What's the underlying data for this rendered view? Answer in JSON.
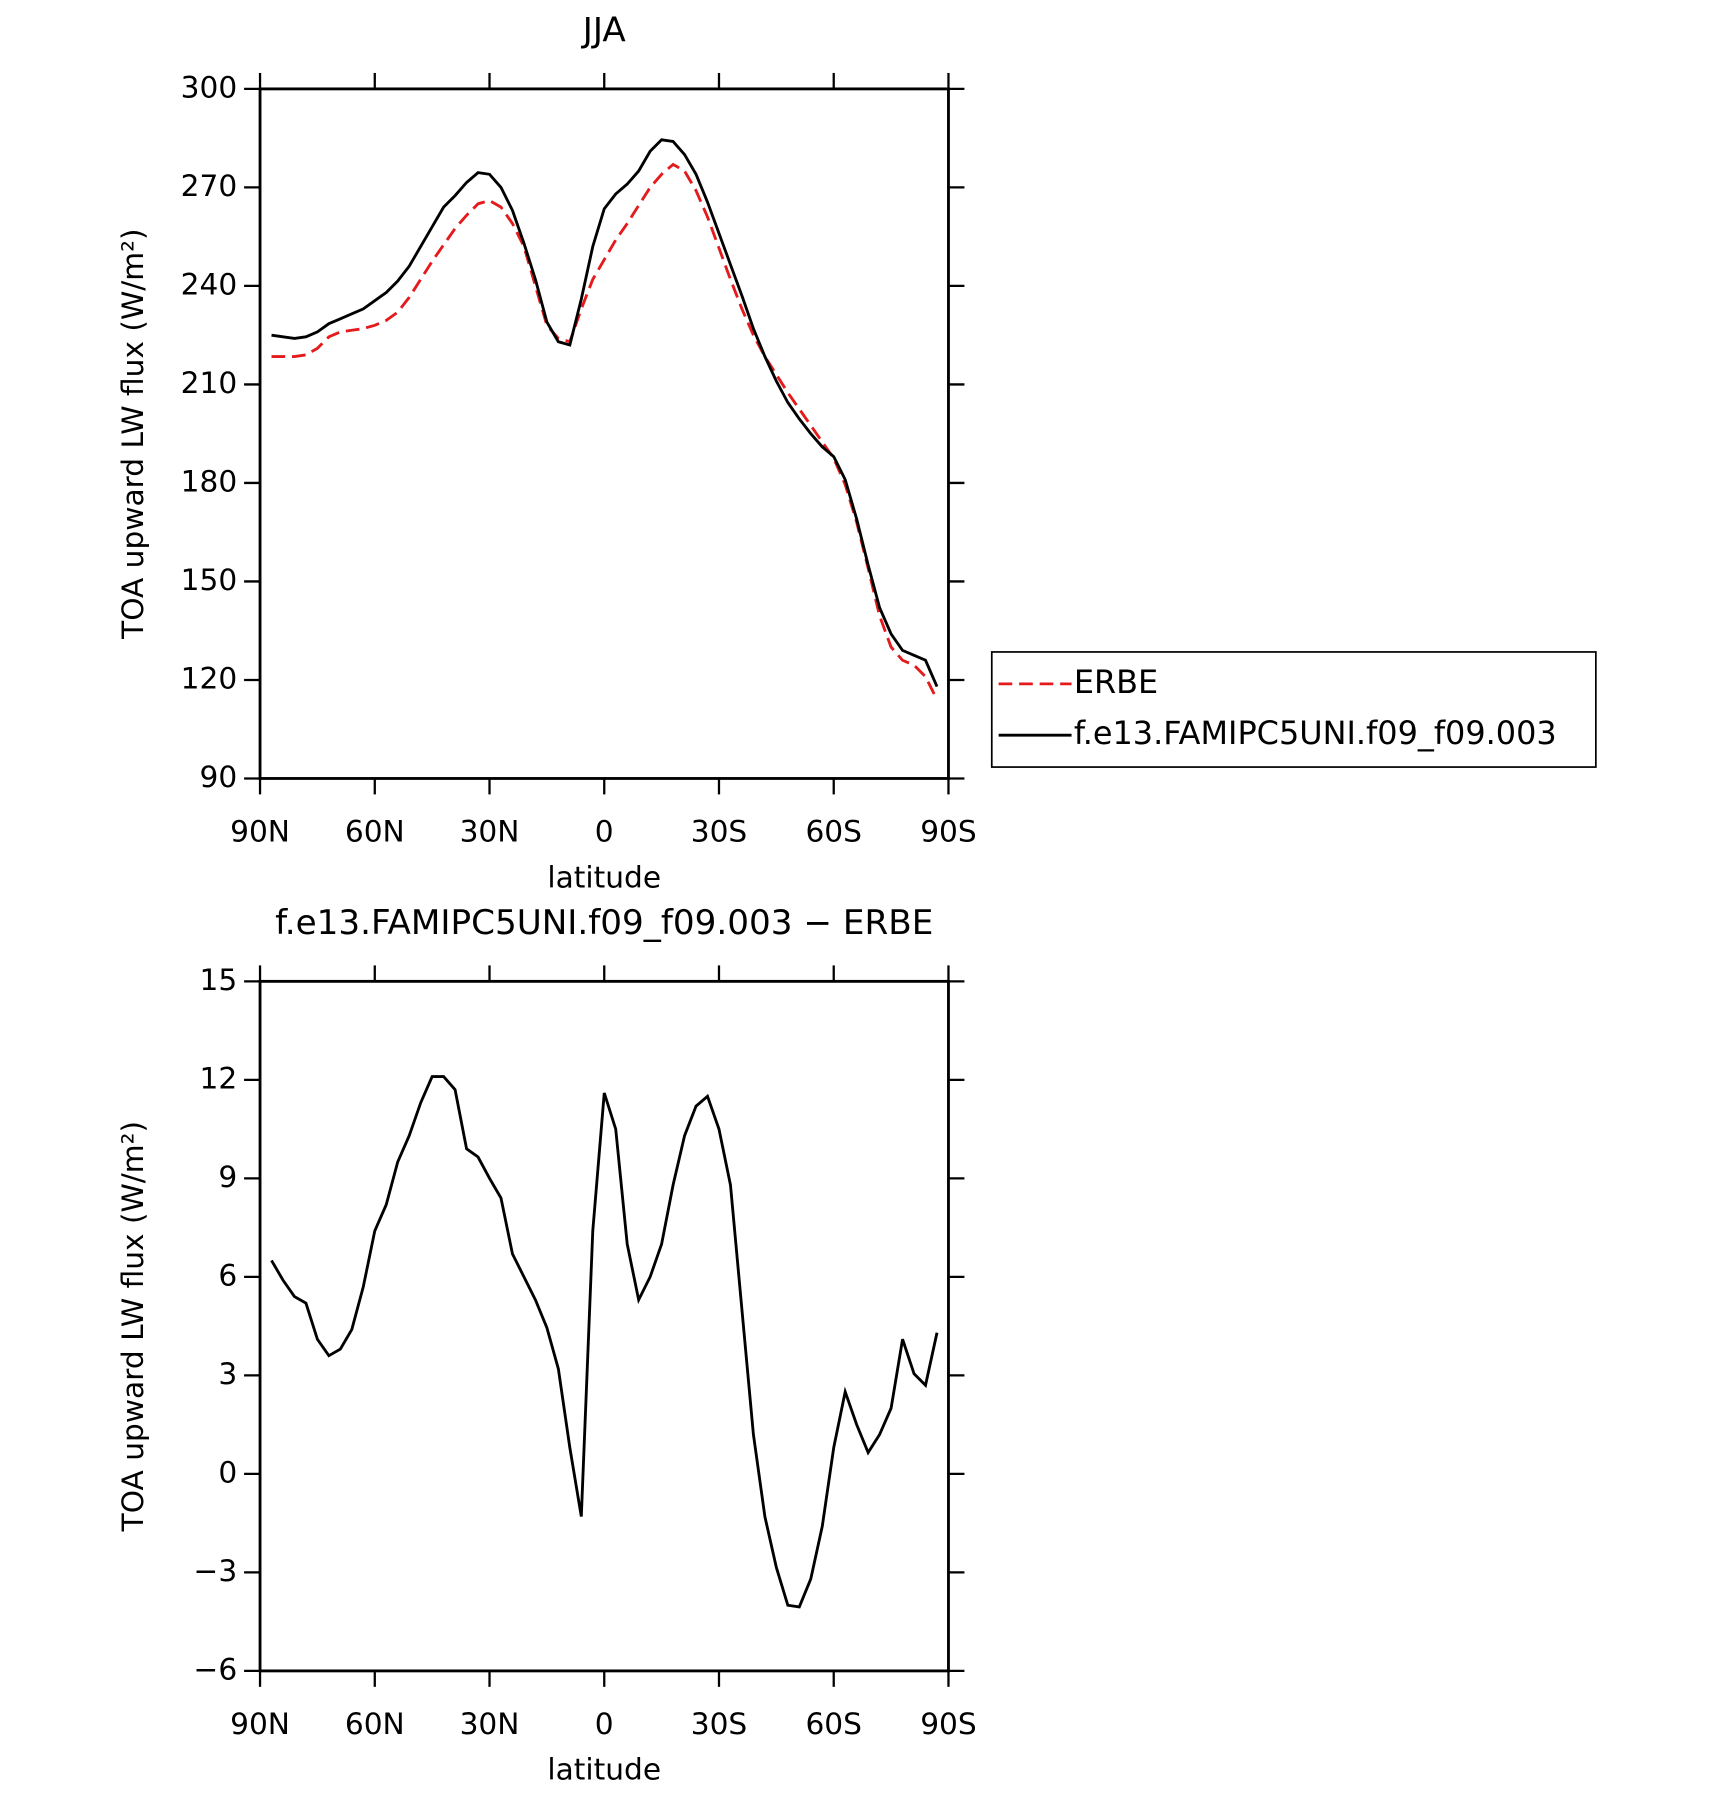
{
  "chart_data": [
    {
      "type": "line",
      "title": "JJA",
      "xlabel": "latitude",
      "ylabel": "TOA upward LW flux (W/m²)",
      "x": [
        87,
        84,
        81,
        78,
        75,
        72,
        69,
        66,
        63,
        60,
        57,
        54,
        51,
        48,
        45,
        42,
        39,
        36,
        33,
        30,
        27,
        24,
        21,
        18,
        15,
        12,
        9,
        6,
        3,
        0,
        -3,
        -6,
        -9,
        -12,
        -15,
        -18,
        -21,
        -24,
        -27,
        -30,
        -33,
        -36,
        -39,
        -42,
        -45,
        -48,
        -51,
        -54,
        -57,
        -60,
        -63,
        -66,
        -69,
        -72,
        -75,
        -78,
        -81,
        -84,
        -87
      ],
      "series": [
        {
          "name": "ERBE",
          "color": "#e41a1c",
          "dash": true,
          "values": [
            218.5,
            218.5,
            218.5,
            219,
            221,
            224.5,
            226,
            226.5,
            227,
            228,
            229.5,
            232,
            236.5,
            242,
            247.5,
            252.5,
            257.5,
            261.5,
            265,
            266,
            264,
            259,
            252,
            240,
            228,
            224,
            223,
            233,
            242,
            248,
            254,
            259,
            264.5,
            270,
            274,
            277,
            275,
            269,
            261,
            251.5,
            242,
            233,
            225,
            218.5,
            213,
            207.5,
            202.5,
            197.5,
            192.5,
            187.5,
            179.5,
            168,
            154,
            139.5,
            130,
            126,
            124.5,
            121,
            114
          ]
        },
        {
          "name": "f.e13.FAMIPC5UNI.f09_f09.003",
          "color": "#000000",
          "dash": false,
          "values": [
            225,
            224.5,
            224,
            224.5,
            226,
            228.5,
            230,
            231.5,
            233,
            235.5,
            238,
            241.5,
            246,
            252,
            258,
            264,
            267.5,
            271.5,
            274.5,
            274,
            270,
            263,
            253,
            242,
            229,
            223,
            222,
            236,
            252,
            263.5,
            268,
            271,
            275,
            281,
            284.5,
            284,
            280,
            274,
            265.5,
            256,
            246.5,
            237,
            227,
            218.5,
            211,
            204.5,
            199.5,
            195,
            191,
            188,
            181,
            169,
            155,
            142,
            134,
            129,
            127.5,
            126,
            118
          ]
        }
      ],
      "xlim": [
        90,
        -90
      ],
      "xticks": [
        {
          "value": 90,
          "label": "90N"
        },
        {
          "value": 60,
          "label": "60N"
        },
        {
          "value": 30,
          "label": "30N"
        },
        0,
        {
          "value": -30,
          "label": "30S"
        },
        {
          "value": -60,
          "label": "60S"
        },
        {
          "value": -90,
          "label": "90S"
        }
      ],
      "ylim": [
        90,
        300
      ],
      "yticks": [
        90,
        120,
        150,
        180,
        210,
        240,
        270,
        300
      ],
      "legend": "right"
    },
    {
      "type": "line",
      "title": "f.e13.FAMIPC5UNI.f09_f09.003 − ERBE",
      "xlabel": "latitude",
      "ylabel": "TOA upward LW flux (W/m²)",
      "x": [
        87,
        84,
        81,
        78,
        75,
        72,
        69,
        66,
        63,
        60,
        57,
        54,
        51,
        48,
        45,
        42,
        39,
        36,
        33,
        30,
        27,
        24,
        21,
        18,
        15,
        12,
        9,
        6,
        3,
        0,
        -3,
        -6,
        -9,
        -12,
        -15,
        -18,
        -21,
        -24,
        -27,
        -30,
        -33,
        -36,
        -39,
        -42,
        -45,
        -48,
        -51,
        -54,
        -57,
        -60,
        -63,
        -66,
        -69,
        -72,
        -75,
        -78,
        -81,
        -84,
        -87
      ],
      "series": [
        {
          "color": "#000000",
          "dash": false,
          "values": [
            6.5,
            5.9,
            5.4,
            5.2,
            4.1,
            3.6,
            3.8,
            4.4,
            5.7,
            7.4,
            8.2,
            9.5,
            10.3,
            11.3,
            12.1,
            12.1,
            11.7,
            9.9,
            9.65,
            9.0,
            8.4,
            6.7,
            6.0,
            5.3,
            4.45,
            3.2,
            0.8,
            -1.3,
            7.4,
            11.6,
            10.5,
            7.0,
            5.3,
            6.0,
            7.0,
            8.8,
            10.3,
            11.2,
            11.5,
            10.5,
            8.8,
            5.0,
            1.2,
            -1.3,
            -2.85,
            -4.0,
            -4.05,
            -3.2,
            -1.6,
            0.8,
            2.5,
            1.5,
            0.65,
            1.2,
            2.0,
            4.1,
            3.05,
            2.7,
            4.3
          ]
        }
      ],
      "xlim": [
        90,
        -90
      ],
      "xticks": [
        {
          "value": 90,
          "label": "90N"
        },
        {
          "value": 60,
          "label": "60N"
        },
        {
          "value": 30,
          "label": "30N"
        },
        0,
        {
          "value": -30,
          "label": "30S"
        },
        {
          "value": -60,
          "label": "60S"
        },
        {
          "value": -90,
          "label": "90S"
        }
      ],
      "ylim": [
        -6,
        15
      ],
      "yticks": [
        {
          "value": -6,
          "label": "−6"
        },
        {
          "value": -3,
          "label": "−3"
        },
        0,
        3,
        6,
        9,
        12,
        15
      ]
    }
  ]
}
